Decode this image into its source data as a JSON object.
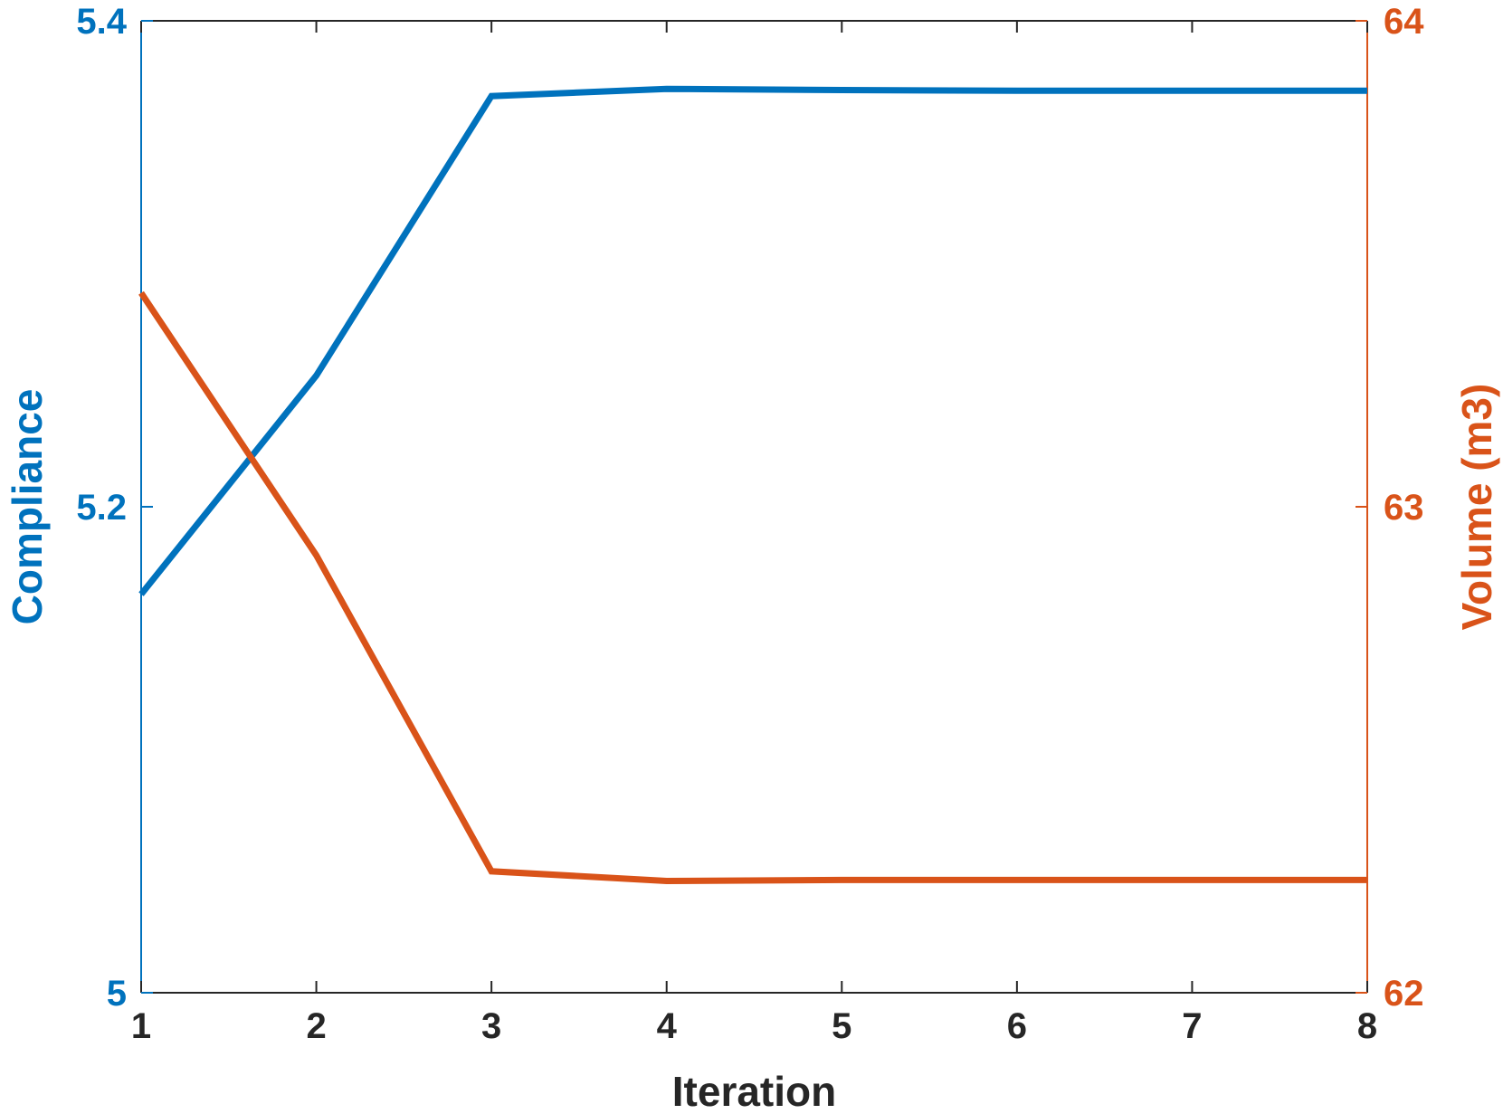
{
  "chart_data": {
    "type": "line",
    "xlabel": "Iteration",
    "ylabel_left": "Compliance",
    "ylabel_right": "Volume (m3)",
    "x": [
      1,
      2,
      3,
      4,
      5,
      6,
      7,
      8
    ],
    "xlim": [
      1,
      8
    ],
    "ylim_left": [
      5,
      5.4
    ],
    "ylim_right": [
      62,
      64
    ],
    "x_ticks": [
      "1",
      "2",
      "3",
      "4",
      "5",
      "6",
      "7",
      "8"
    ],
    "y_ticks_left": [
      "5",
      "5.2",
      "5.4"
    ],
    "y_ticks_right": [
      "62",
      "63",
      "64"
    ],
    "grid": false,
    "series": [
      {
        "axis": "left",
        "color": "#0072BD",
        "values": [
          5.164,
          5.254,
          5.369,
          5.372,
          5.3715,
          5.3712,
          5.3712,
          5.3712
        ]
      },
      {
        "axis": "right",
        "color": "#D95319",
        "values": [
          63.44,
          62.9,
          62.25,
          62.23,
          62.232,
          62.232,
          62.232,
          62.232
        ]
      }
    ]
  }
}
